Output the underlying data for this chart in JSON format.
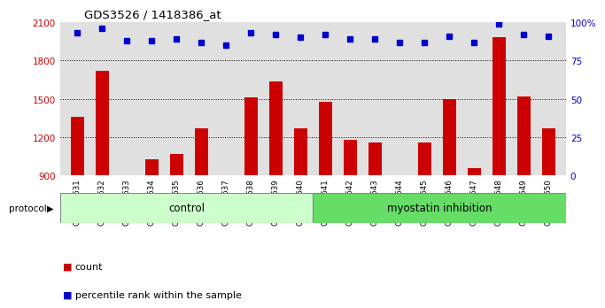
{
  "title": "GDS3526 / 1418386_at",
  "samples": [
    "GSM344631",
    "GSM344632",
    "GSM344633",
    "GSM344634",
    "GSM344635",
    "GSM344636",
    "GSM344637",
    "GSM344638",
    "GSM344639",
    "GSM344640",
    "GSM344641",
    "GSM344642",
    "GSM344643",
    "GSM344644",
    "GSM344645",
    "GSM344646",
    "GSM344647",
    "GSM344648",
    "GSM344649",
    "GSM344650"
  ],
  "counts": [
    1360,
    1720,
    870,
    1030,
    1070,
    1270,
    870,
    1510,
    1640,
    1270,
    1480,
    1180,
    1160,
    870,
    1160,
    1500,
    960,
    1980,
    1520,
    1270
  ],
  "percentile": [
    93,
    96,
    88,
    88,
    89,
    87,
    85,
    93,
    92,
    90,
    92,
    89,
    89,
    87,
    87,
    91,
    87,
    99,
    92,
    91
  ],
  "group_labels": [
    "control",
    "myostatin inhibition"
  ],
  "group_split": 10,
  "bar_color": "#cc0000",
  "dot_color": "#0000cc",
  "ylim_left": [
    900,
    2100
  ],
  "ylim_right": [
    0,
    100
  ],
  "yticks_left": [
    900,
    1200,
    1500,
    1800,
    2100
  ],
  "yticks_right": [
    0,
    25,
    50,
    75,
    100
  ],
  "grid_values": [
    1200,
    1500,
    1800
  ],
  "bg_color": "#e0e0e0",
  "control_color": "#ccffcc",
  "inhibition_color": "#66dd66",
  "legend_count_label": "count",
  "legend_pct_label": "percentile rank within the sample",
  "protocol_label": "protocol"
}
